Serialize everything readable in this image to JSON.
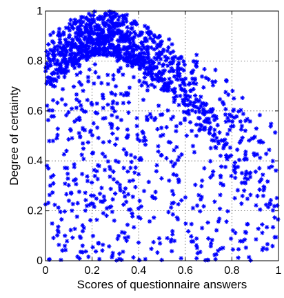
{
  "chart_data": {
    "type": "scatter",
    "title": "",
    "xlabel": "Scores of questionnaire answers",
    "ylabel": "Degree of certainty",
    "xlim": [
      0,
      1
    ],
    "ylim": [
      0,
      1
    ],
    "x_ticks": [
      "0",
      "0.2",
      "0.4",
      "0.6",
      "0.8",
      "1"
    ],
    "y_ticks": [
      "0",
      "0.2",
      "0.4",
      "0.6",
      "0.8",
      "1"
    ],
    "grid": true,
    "marker": "plus-star",
    "marker_color": "#0000ff",
    "approx_point_count": 1500,
    "density_bands": [
      {
        "x": [
          0.0,
          0.05
        ],
        "y_top": 0.92,
        "y_bottom_dense": 0.7,
        "count": 80
      },
      {
        "x": [
          0.05,
          0.1
        ],
        "y_top": 0.95,
        "y_bottom_dense": 0.75,
        "count": 110
      },
      {
        "x": [
          0.1,
          0.15
        ],
        "y_top": 0.97,
        "y_bottom_dense": 0.78,
        "count": 125
      },
      {
        "x": [
          0.15,
          0.2
        ],
        "y_top": 0.99,
        "y_bottom_dense": 0.8,
        "count": 135
      },
      {
        "x": [
          0.2,
          0.25
        ],
        "y_top": 1.0,
        "y_bottom_dense": 0.82,
        "count": 140
      },
      {
        "x": [
          0.25,
          0.3
        ],
        "y_top": 1.0,
        "y_bottom_dense": 0.82,
        "count": 140
      },
      {
        "x": [
          0.3,
          0.35
        ],
        "y_top": 0.99,
        "y_bottom_dense": 0.8,
        "count": 130
      },
      {
        "x": [
          0.35,
          0.4
        ],
        "y_top": 0.97,
        "y_bottom_dense": 0.78,
        "count": 115
      },
      {
        "x": [
          0.4,
          0.45
        ],
        "y_top": 0.95,
        "y_bottom_dense": 0.75,
        "count": 100
      },
      {
        "x": [
          0.45,
          0.5
        ],
        "y_top": 0.92,
        "y_bottom_dense": 0.72,
        "count": 90
      },
      {
        "x": [
          0.5,
          0.55
        ],
        "y_top": 0.89,
        "y_bottom_dense": 0.68,
        "count": 80
      },
      {
        "x": [
          0.55,
          0.6
        ],
        "y_top": 0.86,
        "y_bottom_dense": 0.62,
        "count": 70
      },
      {
        "x": [
          0.6,
          0.65
        ],
        "y_top": 0.83,
        "y_bottom_dense": 0.58,
        "count": 60
      },
      {
        "x": [
          0.65,
          0.7
        ],
        "y_top": 0.8,
        "y_bottom_dense": 0.52,
        "count": 55
      },
      {
        "x": [
          0.7,
          0.75
        ],
        "y_top": 0.77,
        "y_bottom_dense": 0.45,
        "count": 50
      },
      {
        "x": [
          0.75,
          0.8
        ],
        "y_top": 0.74,
        "y_bottom_dense": 0.4,
        "count": 45
      },
      {
        "x": [
          0.8,
          0.85
        ],
        "y_top": 0.7,
        "y_bottom_dense": 0.35,
        "count": 40
      },
      {
        "x": [
          0.85,
          0.9
        ],
        "y_top": 0.66,
        "y_bottom_dense": 0.3,
        "count": 35
      },
      {
        "x": [
          0.9,
          0.95
        ],
        "y_top": 0.62,
        "y_bottom_dense": 0.25,
        "count": 30
      },
      {
        "x": [
          0.95,
          1.0
        ],
        "y_top": 0.58,
        "y_bottom_dense": 0.2,
        "count": 25
      }
    ]
  }
}
